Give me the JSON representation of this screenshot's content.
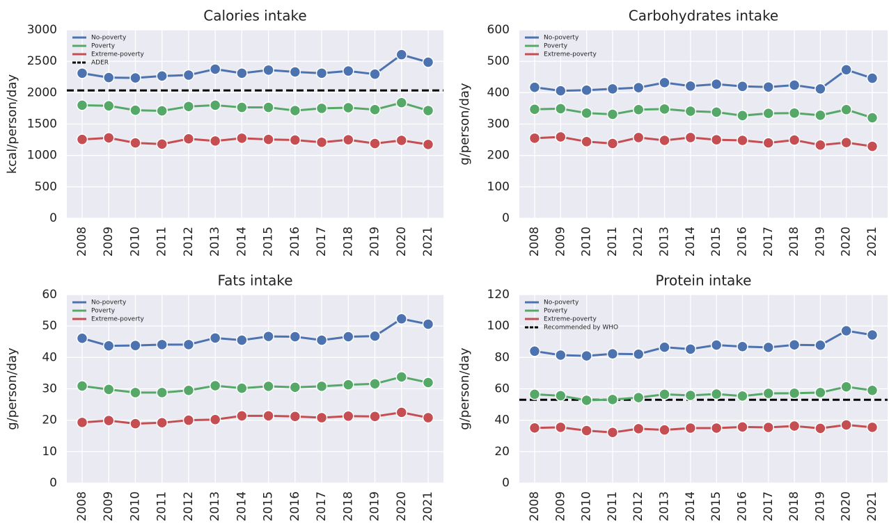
{
  "chart_data": [
    {
      "type": "line",
      "title": "Calories intake",
      "ylabel": "kcal/person/day",
      "categories": [
        "2008",
        "2009",
        "2010",
        "2011",
        "2012",
        "2013",
        "2014",
        "2015",
        "2016",
        "2017",
        "2018",
        "2019",
        "2020",
        "2021"
      ],
      "series": [
        {
          "name": "No-poverty",
          "color": "#4c72b0",
          "values": [
            2310,
            2240,
            2235,
            2265,
            2280,
            2375,
            2310,
            2360,
            2330,
            2310,
            2345,
            2295,
            2605,
            2485
          ]
        },
        {
          "name": "Poverty",
          "color": "#55a868",
          "values": [
            1800,
            1790,
            1720,
            1710,
            1780,
            1800,
            1765,
            1765,
            1715,
            1750,
            1760,
            1730,
            1840,
            1715
          ]
        },
        {
          "name": "Extreme-poverty",
          "color": "#c44e52",
          "values": [
            1255,
            1280,
            1200,
            1180,
            1265,
            1230,
            1275,
            1255,
            1245,
            1210,
            1250,
            1190,
            1240,
            1175
          ]
        }
      ],
      "reference_lines": [
        {
          "name": "ADER",
          "value": 2035,
          "color": "#000000"
        }
      ],
      "ylim": [
        0,
        3000
      ],
      "yticks": [
        0,
        500,
        1000,
        1500,
        2000,
        2500,
        3000
      ],
      "grid": true,
      "legend": "upper left"
    },
    {
      "type": "line",
      "title": "Carbohydrates intake",
      "ylabel": "g/person/day",
      "categories": [
        "2008",
        "2009",
        "2010",
        "2011",
        "2012",
        "2013",
        "2014",
        "2015",
        "2016",
        "2017",
        "2018",
        "2019",
        "2020",
        "2021"
      ],
      "series": [
        {
          "name": "No-poverty",
          "color": "#4c72b0",
          "values": [
            417,
            406,
            408,
            412,
            416,
            432,
            421,
            427,
            420,
            418,
            424,
            412,
            473,
            446
          ]
        },
        {
          "name": "Poverty",
          "color": "#55a868",
          "values": [
            347,
            349,
            335,
            331,
            346,
            348,
            341,
            338,
            327,
            334,
            335,
            328,
            346,
            320
          ]
        },
        {
          "name": "Extreme-poverty",
          "color": "#c44e52",
          "values": [
            255,
            259,
            244,
            238,
            257,
            248,
            257,
            250,
            248,
            240,
            249,
            233,
            241,
            229
          ]
        }
      ],
      "ylim": [
        0,
        600
      ],
      "yticks": [
        0,
        100,
        200,
        300,
        400,
        500,
        600
      ],
      "grid": true,
      "legend": "upper left"
    },
    {
      "type": "line",
      "title": "Fats intake",
      "ylabel": "g/person/day",
      "categories": [
        "2008",
        "2009",
        "2010",
        "2011",
        "2012",
        "2013",
        "2014",
        "2015",
        "2016",
        "2017",
        "2018",
        "2019",
        "2020",
        "2021"
      ],
      "series": [
        {
          "name": "No-poverty",
          "color": "#4c72b0",
          "values": [
            46.1,
            43.7,
            43.8,
            44.1,
            44.1,
            46.2,
            45.5,
            46.7,
            46.6,
            45.5,
            46.6,
            46.8,
            52.3,
            50.6
          ]
        },
        {
          "name": "Poverty",
          "color": "#55a868",
          "values": [
            30.9,
            29.8,
            28.8,
            28.8,
            29.5,
            31.0,
            30.2,
            30.8,
            30.5,
            30.8,
            31.3,
            31.6,
            33.8,
            32.0
          ]
        },
        {
          "name": "Extreme-poverty",
          "color": "#c44e52",
          "values": [
            19.3,
            19.9,
            18.9,
            19.2,
            20.0,
            20.2,
            21.4,
            21.4,
            21.2,
            20.8,
            21.3,
            21.2,
            22.5,
            20.8
          ]
        }
      ],
      "ylim": [
        0,
        60
      ],
      "yticks": [
        0,
        10,
        20,
        30,
        40,
        50,
        60
      ],
      "grid": true,
      "legend": "upper left"
    },
    {
      "type": "line",
      "title": "Protein intake",
      "ylabel": "g/person/day",
      "categories": [
        "2008",
        "2009",
        "2010",
        "2011",
        "2012",
        "2013",
        "2014",
        "2015",
        "2016",
        "2017",
        "2018",
        "2019",
        "2020",
        "2021"
      ],
      "series": [
        {
          "name": "No-poverty",
          "color": "#4c72b0",
          "values": [
            84,
            81.5,
            81,
            82.3,
            82.1,
            86.5,
            85.3,
            87.9,
            86.9,
            86.4,
            88,
            87.8,
            97,
            94.3
          ]
        },
        {
          "name": "Poverty",
          "color": "#55a868",
          "values": [
            56.5,
            55.6,
            52.7,
            53.2,
            54.4,
            56.5,
            55.8,
            56.7,
            55.4,
            57.1,
            57.2,
            57.6,
            61.3,
            59
          ]
        },
        {
          "name": "Extreme-poverty",
          "color": "#c44e52",
          "values": [
            35.1,
            35.5,
            33.4,
            32.2,
            34.6,
            33.8,
            35,
            35,
            35.7,
            35.4,
            36.3,
            34.8,
            37,
            35.5
          ]
        }
      ],
      "reference_lines": [
        {
          "name": "Recommended by WHO",
          "value": 53,
          "color": "#000000"
        }
      ],
      "ylim": [
        0,
        120
      ],
      "yticks": [
        0,
        20,
        40,
        60,
        80,
        100,
        120
      ],
      "grid": true,
      "legend": "upper left"
    }
  ]
}
